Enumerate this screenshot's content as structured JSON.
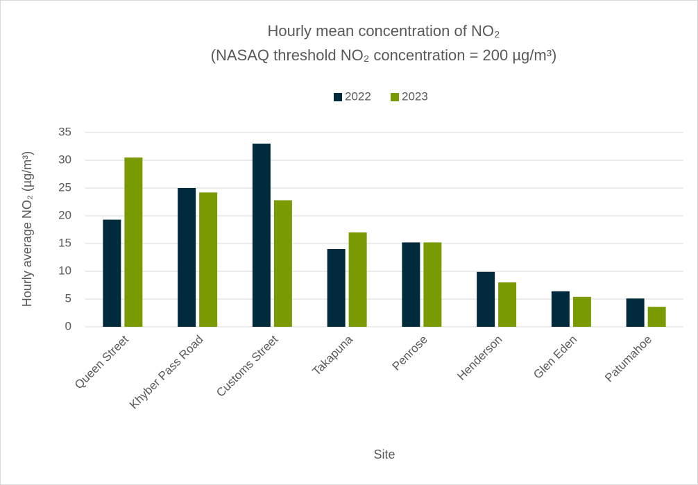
{
  "chart_data": {
    "type": "bar",
    "title": [
      "Hourly mean concentration of NO₂",
      "(NASAQ threshold NO₂ concentration = 200 µg/m³)"
    ],
    "x_label": "Site",
    "y_label": "Hourly average  NO₂ (µg/m³)",
    "categories": [
      "Queen Street",
      "Khyber Pass Road",
      "Customs Street",
      "Takapuna",
      "Penrose",
      "Henderson",
      "Glen Eden",
      "Patumahoe"
    ],
    "series": [
      {
        "name": "2022",
        "color": "#002b3d",
        "values": [
          19.3,
          25,
          33,
          14,
          15.2,
          9.9,
          6.4,
          5.1
        ]
      },
      {
        "name": "2023",
        "color": "#7a9a01",
        "values": [
          30.5,
          24.2,
          22.8,
          17,
          15.2,
          8,
          5.4,
          3.6
        ]
      }
    ],
    "ylim": [
      0,
      35
    ],
    "yticks": [
      0,
      5,
      10,
      15,
      20,
      25,
      30,
      35
    ],
    "grid": true,
    "legend": "top"
  }
}
